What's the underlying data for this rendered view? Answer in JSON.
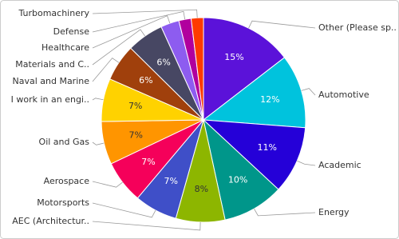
{
  "chart_data": {
    "type": "pie",
    "categories": [
      "Other (Please sp..",
      "Automotive",
      "Academic",
      "Energy",
      "AEC (Architectur..",
      "Motorsports",
      "Aerospace",
      "Oil and Gas",
      "I work in an engi..",
      "Naval and Marine",
      "Materials and C..",
      "Healthcare",
      "Defense",
      "Turbomachinery"
    ],
    "values": [
      15,
      12,
      11,
      10,
      8,
      7,
      7,
      7,
      7,
      6,
      6,
      3,
      2,
      2
    ],
    "value_labels": [
      "15%",
      "12%",
      "11%",
      "10%",
      "8%",
      "7%",
      "7%",
      "7%",
      "7%",
      "6%",
      "6%",
      null,
      null,
      null
    ],
    "colors": [
      "#5b12d9",
      "#00c3dd",
      "#2500d8",
      "#00968a",
      "#8db600",
      "#3f4fc8",
      "#f5005a",
      "#ff9500",
      "#ffd200",
      "#a0400c",
      "#474763",
      "#8d5cf0",
      "#b1009e",
      "#ff3a00"
    ]
  }
}
